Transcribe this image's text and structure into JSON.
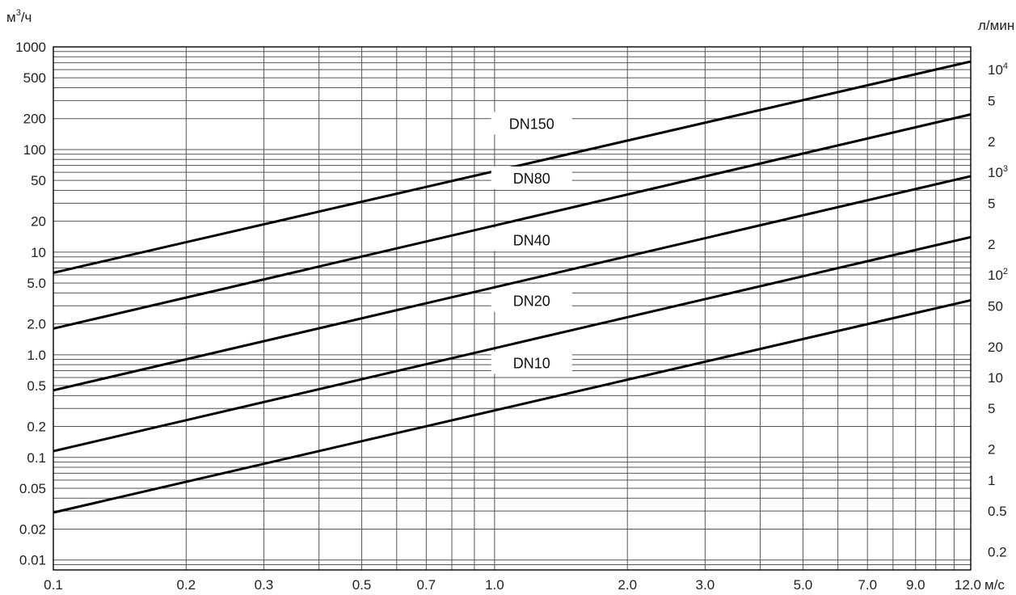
{
  "chart_data": {
    "type": "line",
    "x_scale": "log",
    "y_scale": "log",
    "xlim": [
      0.1,
      12.0
    ],
    "ylim": [
      0.008,
      1000
    ],
    "grid": true,
    "x_unit": "м/с",
    "y_unit_left": "м³/ч",
    "y_unit_right": "л/мин",
    "x_ticks": [
      {
        "value": 0.1,
        "label": "0.1"
      },
      {
        "value": 0.2,
        "label": "0.2"
      },
      {
        "value": 0.3,
        "label": "0.3"
      },
      {
        "value": 0.5,
        "label": "0.5"
      },
      {
        "value": 0.7,
        "label": "0.7"
      },
      {
        "value": 1.0,
        "label": "1.0"
      },
      {
        "value": 2.0,
        "label": "2.0"
      },
      {
        "value": 3.0,
        "label": "3.0"
      },
      {
        "value": 5.0,
        "label": "5.0"
      },
      {
        "value": 7.0,
        "label": "7.0"
      },
      {
        "value": 9.0,
        "label": "9.0"
      },
      {
        "value": 12.0,
        "label": "12.0"
      }
    ],
    "y_ticks_left": [
      {
        "value": 1000,
        "label": "1000"
      },
      {
        "value": 500,
        "label": "500"
      },
      {
        "value": 200,
        "label": "200"
      },
      {
        "value": 100,
        "label": "100"
      },
      {
        "value": 50,
        "label": "50"
      },
      {
        "value": 20,
        "label": "20"
      },
      {
        "value": 10,
        "label": "10"
      },
      {
        "value": 5,
        "label": "5.0"
      },
      {
        "value": 2,
        "label": "2.0"
      },
      {
        "value": 1,
        "label": "1.0"
      },
      {
        "value": 0.5,
        "label": "0.5"
      },
      {
        "value": 0.2,
        "label": "0.2"
      },
      {
        "value": 0.1,
        "label": "0.1"
      },
      {
        "value": 0.05,
        "label": "0.05"
      },
      {
        "value": 0.02,
        "label": "0.02"
      },
      {
        "value": 0.01,
        "label": "0.01"
      }
    ],
    "y_ticks_right": [
      {
        "value": 10000,
        "base": "10",
        "exp": "4"
      },
      {
        "value": 5000,
        "base": "5",
        "exp": ""
      },
      {
        "value": 2000,
        "base": "2",
        "exp": ""
      },
      {
        "value": 1000,
        "base": "10",
        "exp": "3"
      },
      {
        "value": 500,
        "base": "5",
        "exp": ""
      },
      {
        "value": 200,
        "base": "2",
        "exp": ""
      },
      {
        "value": 100,
        "base": "10",
        "exp": "2"
      },
      {
        "value": 50,
        "base": "50",
        "exp": ""
      },
      {
        "value": 20,
        "base": "20",
        "exp": ""
      },
      {
        "value": 10,
        "base": "10",
        "exp": ""
      },
      {
        "value": 5,
        "base": "5",
        "exp": ""
      },
      {
        "value": 2,
        "base": "2",
        "exp": ""
      },
      {
        "value": 1,
        "base": "1",
        "exp": ""
      },
      {
        "value": 0.5,
        "base": "0.5",
        "exp": ""
      },
      {
        "value": 0.2,
        "base": "0.2",
        "exp": ""
      }
    ],
    "series": [
      {
        "name": "DN150",
        "x": [
          0.1,
          12.0
        ],
        "y": [
          6.3,
          720
        ],
        "label_at_x": 0.95
      },
      {
        "name": "DN80",
        "x": [
          0.1,
          12.0
        ],
        "y": [
          1.8,
          220
        ],
        "label_at_x": 0.95
      },
      {
        "name": "DN40",
        "x": [
          0.1,
          12.0
        ],
        "y": [
          0.45,
          55
        ],
        "label_at_x": 0.95
      },
      {
        "name": "DN20",
        "x": [
          0.1,
          12.0
        ],
        "y": [
          0.115,
          14
        ],
        "label_at_x": 0.95
      },
      {
        "name": "DN10",
        "x": [
          0.1,
          12.0
        ],
        "y": [
          0.029,
          3.4
        ],
        "label_at_x": 0.95
      }
    ]
  }
}
